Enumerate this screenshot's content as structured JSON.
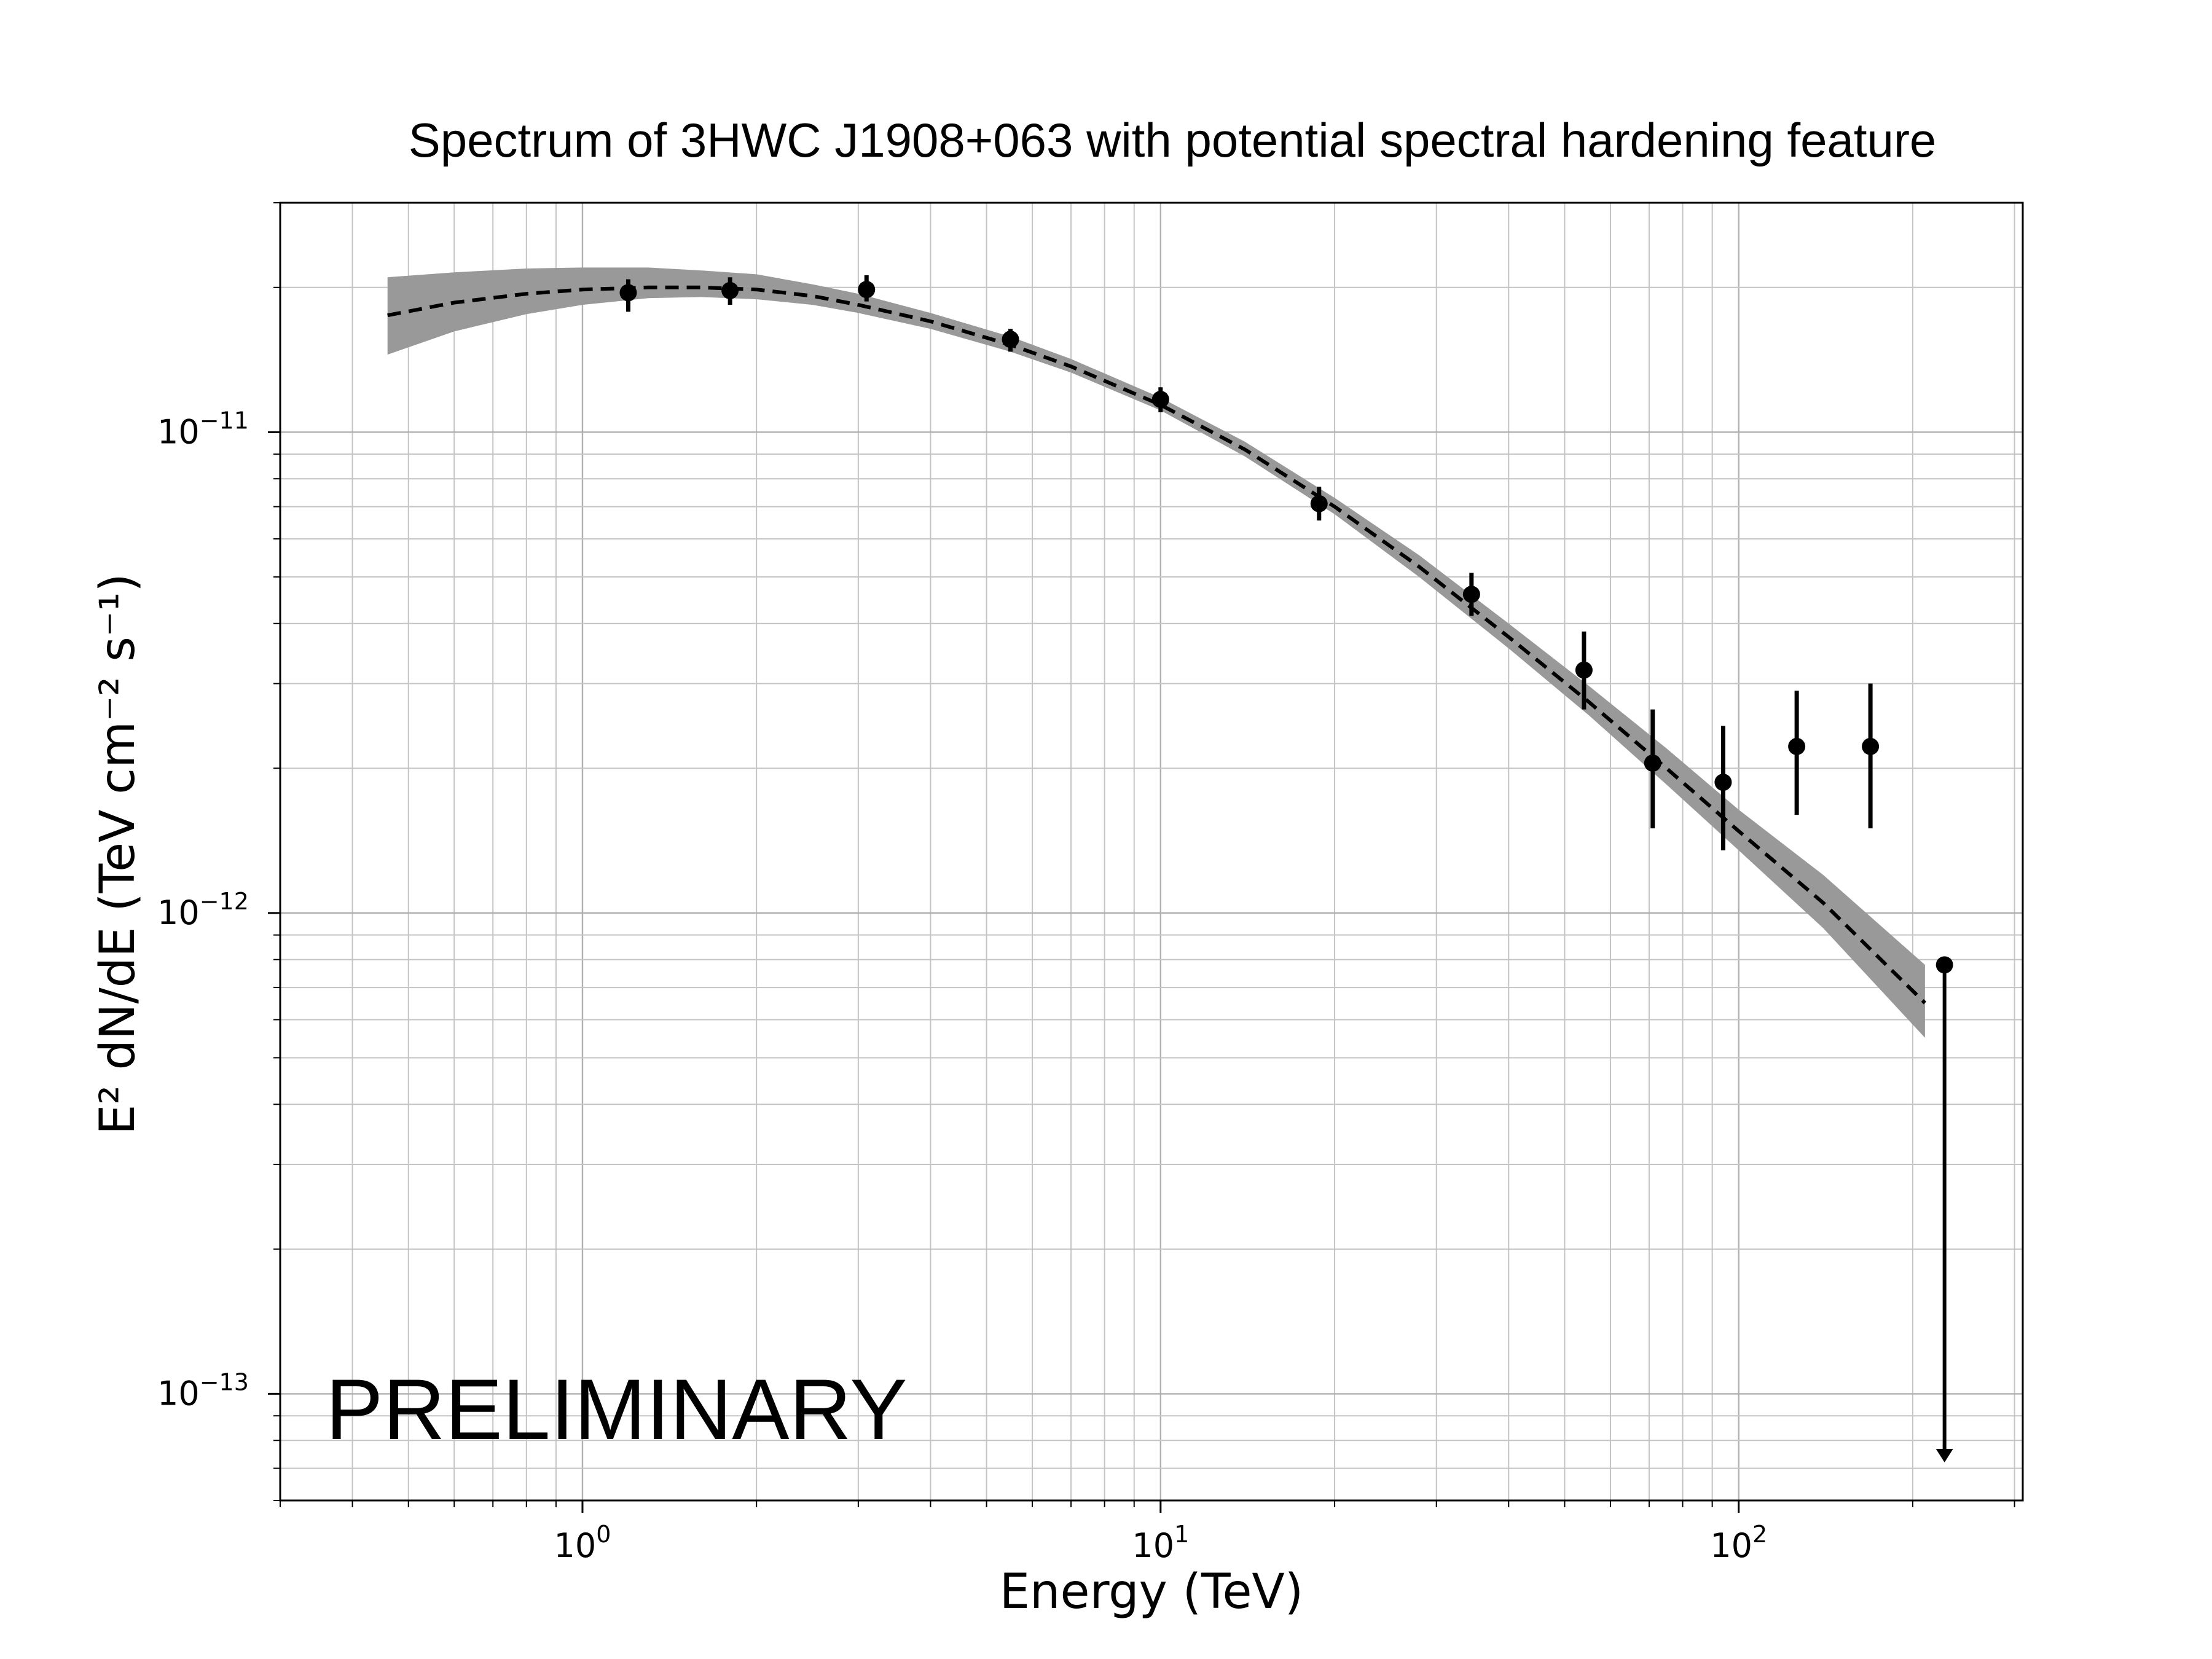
{
  "chart_data": {
    "type": "scatter",
    "title": "Spectrum of 3HWC J1908+063 with potential spectral hardening feature",
    "xlabel": "Energy (TeV)",
    "ylabel": "E² dN/dE (TeV cm⁻² s⁻¹)",
    "xscale": "log",
    "yscale": "log",
    "xlim": [
      0.3,
      310
    ],
    "ylim": [
      6e-14,
      3e-11
    ],
    "x_ticks": [
      {
        "value": 1,
        "base": "10",
        "exp": "0"
      },
      {
        "value": 10,
        "base": "10",
        "exp": "1"
      },
      {
        "value": 100,
        "base": "10",
        "exp": "2"
      }
    ],
    "y_ticks": [
      {
        "value": 1e-11,
        "base": "10",
        "exp": "−11"
      },
      {
        "value": 1e-12,
        "base": "10",
        "exp": "−12"
      },
      {
        "value": 1e-13,
        "base": "10",
        "exp": "−13"
      }
    ],
    "grid": true,
    "series": [
      {
        "kind": "model",
        "style": "dashed",
        "color": "#000000",
        "band_color": "#999999",
        "x": [
          0.46,
          0.6,
          0.8,
          1.0,
          1.3,
          1.6,
          2.0,
          2.5,
          3.0,
          4.0,
          5.5,
          7.0,
          10.0,
          14.0,
          20.0,
          28.0,
          40.0,
          55.0,
          75.0,
          100.0,
          140.0,
          210.0
        ],
        "y": [
          1.75e-11,
          1.86e-11,
          1.94e-11,
          1.98e-11,
          2e-11,
          2e-11,
          1.98e-11,
          1.92e-11,
          1.84e-11,
          1.7e-11,
          1.52e-11,
          1.37e-11,
          1.14e-11,
          9.2e-12,
          7e-12,
          5.25e-12,
          3.75e-12,
          2.75e-12,
          2e-12,
          1.48e-12,
          1.05e-12,
          6.5e-13
        ],
        "band_low": [
          1.45e-11,
          1.62e-11,
          1.76e-11,
          1.84e-11,
          1.9e-11,
          1.91e-11,
          1.89e-11,
          1.84e-11,
          1.77e-11,
          1.64e-11,
          1.47e-11,
          1.33e-11,
          1.11e-11,
          8.9e-12,
          6.75e-12,
          5e-12,
          3.55e-12,
          2.58e-12,
          1.85e-12,
          1.35e-12,
          9.3e-13,
          5.5e-13
        ],
        "band_high": [
          2.1e-11,
          2.15e-11,
          2.19e-11,
          2.2e-11,
          2.2e-11,
          2.17e-11,
          2.13e-11,
          2.03e-11,
          1.94e-11,
          1.77e-11,
          1.58e-11,
          1.42e-11,
          1.18e-11,
          9.55e-12,
          7.3e-12,
          5.55e-12,
          4e-12,
          2.97e-12,
          2.2e-12,
          1.64e-12,
          1.2e-12,
          7.8e-13
        ]
      },
      {
        "kind": "points",
        "color": "#000000",
        "points": [
          {
            "x": 1.2,
            "y": 1.95e-11,
            "ylo": 1.78e-11,
            "yhi": 2.08e-11
          },
          {
            "x": 1.8,
            "y": 1.97e-11,
            "ylo": 1.84e-11,
            "yhi": 2.1e-11
          },
          {
            "x": 3.1,
            "y": 1.98e-11,
            "ylo": 1.87e-11,
            "yhi": 2.12e-11
          },
          {
            "x": 5.5,
            "y": 1.56e-11,
            "ylo": 1.47e-11,
            "yhi": 1.64e-11
          },
          {
            "x": 10.0,
            "y": 1.17e-11,
            "ylo": 1.1e-11,
            "yhi": 1.24e-11
          },
          {
            "x": 18.8,
            "y": 7.1e-12,
            "ylo": 6.55e-12,
            "yhi": 7.7e-12
          },
          {
            "x": 34.5,
            "y": 4.6e-12,
            "ylo": 4.15e-12,
            "yhi": 5.1e-12
          },
          {
            "x": 54.0,
            "y": 3.2e-12,
            "ylo": 2.65e-12,
            "yhi": 3.85e-12
          },
          {
            "x": 71.0,
            "y": 2.05e-12,
            "ylo": 1.5e-12,
            "yhi": 2.65e-12
          },
          {
            "x": 94.0,
            "y": 1.87e-12,
            "ylo": 1.35e-12,
            "yhi": 2.45e-12
          },
          {
            "x": 126.0,
            "y": 2.22e-12,
            "ylo": 1.6e-12,
            "yhi": 2.9e-12
          },
          {
            "x": 169.0,
            "y": 2.22e-12,
            "ylo": 1.5e-12,
            "yhi": 3e-12
          }
        ]
      },
      {
        "kind": "upper_limit",
        "color": "#000000",
        "points": [
          {
            "x": 227.0,
            "y": 7.8e-13,
            "arrow_to": 7.2e-14
          }
        ]
      }
    ],
    "annotations": [
      {
        "text": "PRELIMINARY"
      }
    ]
  }
}
